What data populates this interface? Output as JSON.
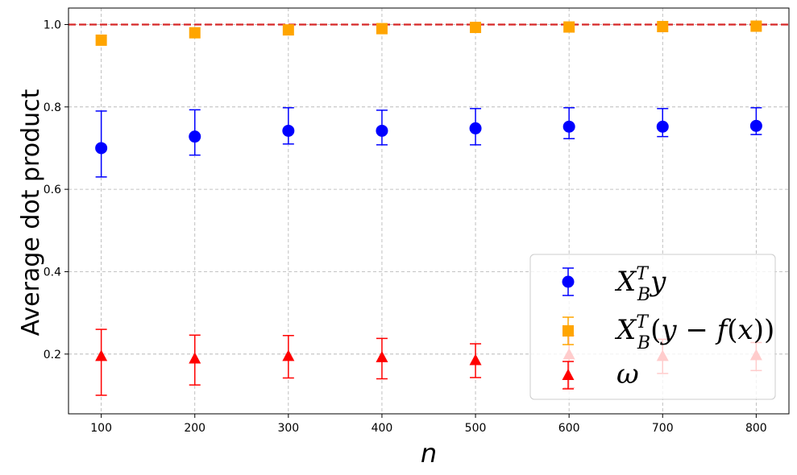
{
  "chart_data": {
    "type": "scatter",
    "title": "",
    "xlabel": "n",
    "ylabel": "Average dot product",
    "xlim": [
      65,
      835
    ],
    "ylim": [
      0.055,
      1.04
    ],
    "xticks": [
      100,
      200,
      300,
      400,
      500,
      600,
      700,
      800
    ],
    "yticks": [
      0.2,
      0.4,
      0.6,
      0.8,
      1.0
    ],
    "ytick_labels": [
      "0.2",
      "0.4",
      "0.6",
      "0.8",
      "1.0"
    ],
    "grid": true,
    "legend_position": "bottom-right",
    "reference_line": {
      "y": 1.0,
      "style": "dashed",
      "color": "#d62728"
    },
    "series": [
      {
        "name": "X_B^T y",
        "color": "#0000ff",
        "marker": "circle",
        "x": [
          100,
          200,
          300,
          400,
          500,
          600,
          700,
          800
        ],
        "y": [
          0.7,
          0.728,
          0.742,
          0.742,
          0.748,
          0.752,
          0.752,
          0.754
        ],
        "err_low": [
          0.63,
          0.683,
          0.71,
          0.708,
          0.708,
          0.723,
          0.728,
          0.733
        ],
        "err_high": [
          0.79,
          0.793,
          0.798,
          0.792,
          0.796,
          0.798,
          0.796,
          0.798
        ]
      },
      {
        "name": "X_B^T (y - f(x))",
        "color": "#ffa500",
        "marker": "square",
        "x": [
          100,
          200,
          300,
          400,
          500,
          600,
          700,
          800
        ],
        "y": [
          0.962,
          0.98,
          0.987,
          0.99,
          0.993,
          0.994,
          0.995,
          0.996
        ],
        "err_low": [
          0.962,
          0.98,
          0.987,
          0.99,
          0.993,
          0.994,
          0.995,
          0.996
        ],
        "err_high": [
          0.962,
          0.98,
          0.987,
          0.99,
          0.993,
          0.994,
          0.995,
          0.996
        ]
      },
      {
        "name": "ω",
        "color": "#ff0000",
        "marker": "triangle",
        "x": [
          100,
          200,
          300,
          400,
          500,
          600,
          700,
          800
        ],
        "y": [
          0.193,
          0.187,
          0.193,
          0.19,
          0.183,
          0.197,
          0.193,
          0.195
        ],
        "err_low": [
          0.1,
          0.125,
          0.142,
          0.14,
          0.143,
          0.118,
          0.153,
          0.16
        ],
        "err_high": [
          0.26,
          0.246,
          0.245,
          0.238,
          0.225,
          0.245,
          0.236,
          0.228
        ]
      }
    ]
  }
}
